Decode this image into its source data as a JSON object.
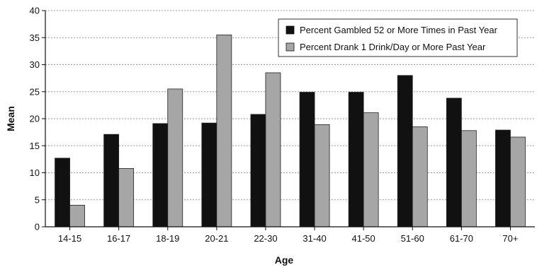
{
  "chart_data": {
    "type": "bar",
    "title": "",
    "xlabel": "Age",
    "ylabel": "Mean",
    "categories": [
      "14-15",
      "16-17",
      "18-19",
      "20-21",
      "22-30",
      "31-40",
      "41-50",
      "51-60",
      "61-70",
      "70+"
    ],
    "series": [
      {
        "name": "Percent Gambled 52 or More Times in Past Year",
        "color": "#111111",
        "values": [
          12.7,
          17.1,
          19.1,
          19.2,
          20.8,
          24.9,
          24.9,
          28.0,
          23.8,
          17.9
        ]
      },
      {
        "name": "Percent Drank 1 Drink/Day or More Past Year",
        "color": "#a6a6a6",
        "values": [
          4.0,
          10.8,
          25.5,
          35.5,
          28.5,
          18.9,
          21.1,
          18.5,
          17.8,
          16.6
        ]
      }
    ],
    "ylim": [
      0,
      40
    ],
    "yticks": [
      0,
      5,
      10,
      15,
      20,
      25,
      30,
      35,
      40
    ],
    "grid": true,
    "legend_position": "top-right"
  }
}
